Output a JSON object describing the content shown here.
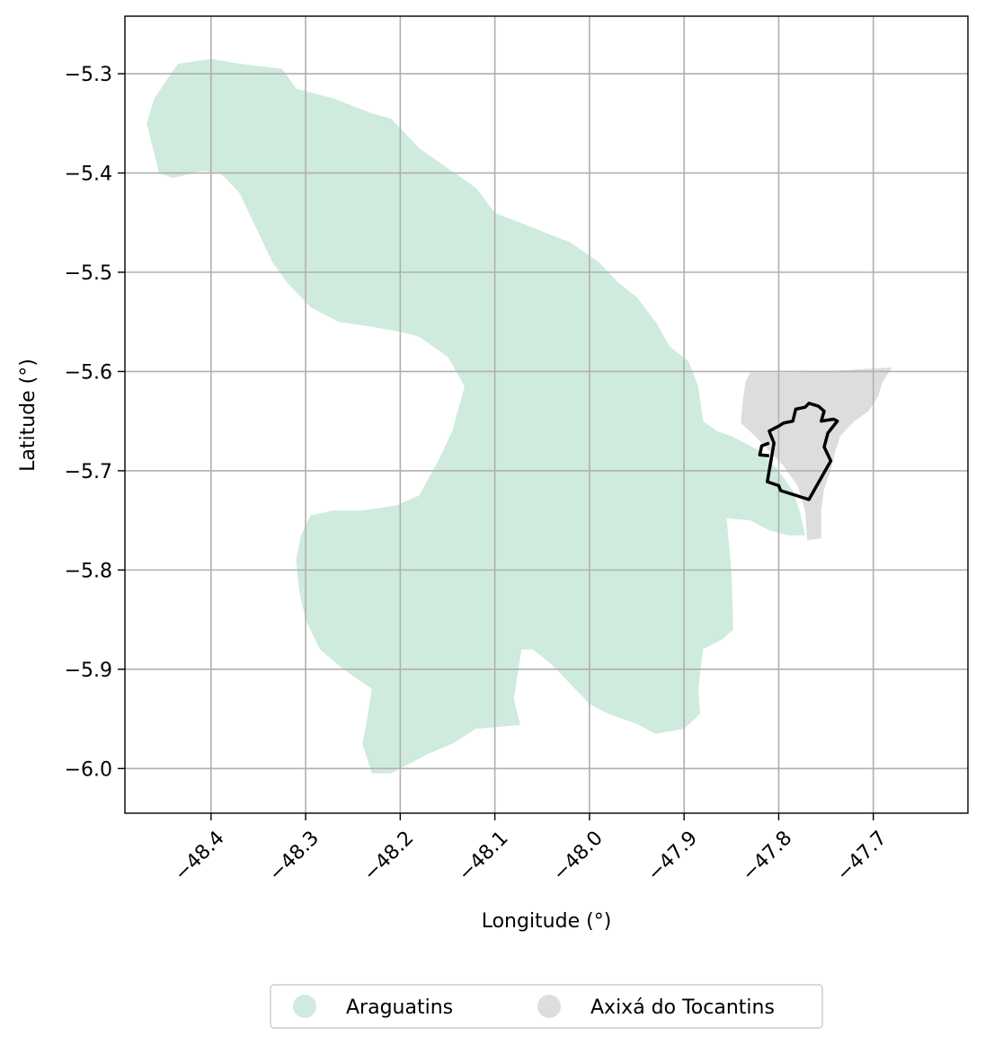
{
  "chart_data": {
    "type": "map",
    "xlabel": "Longitude (°)",
    "ylabel": "Latitude (°)",
    "xlim": [
      -48.491,
      -47.6
    ],
    "ylim": [
      -6.045,
      -5.242
    ],
    "grid": true,
    "x_ticks": [
      {
        "value": -48.4,
        "label": "−48.4"
      },
      {
        "value": -48.3,
        "label": "−48.3"
      },
      {
        "value": -48.2,
        "label": "−48.2"
      },
      {
        "value": -48.1,
        "label": "−48.1"
      },
      {
        "value": -48.0,
        "label": "−48.0"
      },
      {
        "value": -47.9,
        "label": "−47.9"
      },
      {
        "value": -47.8,
        "label": "−47.8"
      },
      {
        "value": -47.7,
        "label": "−47.7"
      }
    ],
    "y_ticks": [
      {
        "value": -5.3,
        "label": "−5.3"
      },
      {
        "value": -5.4,
        "label": "−5.4"
      },
      {
        "value": -5.5,
        "label": "−5.5"
      },
      {
        "value": -5.6,
        "label": "−5.6"
      },
      {
        "value": -5.7,
        "label": "−5.7"
      },
      {
        "value": -5.8,
        "label": "−5.8"
      },
      {
        "value": -5.9,
        "label": "−5.9"
      },
      {
        "value": -6.0,
        "label": "−6.0"
      }
    ],
    "legend_position": "bottom-center",
    "regions": [
      {
        "name": "Araguatins",
        "color": "#cfebde",
        "coords": [
          [
            -48.448,
            -5.308
          ],
          [
            -48.435,
            -5.29
          ],
          [
            -48.4,
            -5.285
          ],
          [
            -48.37,
            -5.29
          ],
          [
            -48.325,
            -5.295
          ],
          [
            -48.31,
            -5.315
          ],
          [
            -48.27,
            -5.325
          ],
          [
            -48.23,
            -5.34
          ],
          [
            -48.21,
            -5.345
          ],
          [
            -48.195,
            -5.36
          ],
          [
            -48.18,
            -5.375
          ],
          [
            -48.15,
            -5.395
          ],
          [
            -48.12,
            -5.415
          ],
          [
            -48.1,
            -5.44
          ],
          [
            -48.06,
            -5.455
          ],
          [
            -48.02,
            -5.47
          ],
          [
            -47.99,
            -5.49
          ],
          [
            -47.97,
            -5.51
          ],
          [
            -47.95,
            -5.525
          ],
          [
            -47.93,
            -5.55
          ],
          [
            -47.915,
            -5.575
          ],
          [
            -47.895,
            -5.59
          ],
          [
            -47.885,
            -5.615
          ],
          [
            -47.88,
            -5.65
          ],
          [
            -47.865,
            -5.66
          ],
          [
            -47.85,
            -5.665
          ],
          [
            -47.84,
            -5.67
          ],
          [
            -47.82,
            -5.68
          ],
          [
            -47.8,
            -5.7
          ],
          [
            -47.785,
            -5.72
          ],
          [
            -47.778,
            -5.74
          ],
          [
            -47.772,
            -5.765
          ],
          [
            -47.79,
            -5.765
          ],
          [
            -47.81,
            -5.76
          ],
          [
            -47.83,
            -5.75
          ],
          [
            -47.855,
            -5.748
          ],
          [
            -47.85,
            -5.8
          ],
          [
            -47.848,
            -5.86
          ],
          [
            -47.86,
            -5.87
          ],
          [
            -47.88,
            -5.88
          ],
          [
            -47.885,
            -5.92
          ],
          [
            -47.883,
            -5.945
          ],
          [
            -47.9,
            -5.96
          ],
          [
            -47.93,
            -5.965
          ],
          [
            -47.95,
            -5.955
          ],
          [
            -47.98,
            -5.945
          ],
          [
            -48.0,
            -5.935
          ],
          [
            -48.02,
            -5.915
          ],
          [
            -48.04,
            -5.895
          ],
          [
            -48.06,
            -5.88
          ],
          [
            -48.072,
            -5.88
          ],
          [
            -48.075,
            -5.9
          ],
          [
            -48.08,
            -5.93
          ],
          [
            -48.073,
            -5.956
          ],
          [
            -48.095,
            -5.958
          ],
          [
            -48.12,
            -5.96
          ],
          [
            -48.145,
            -5.975
          ],
          [
            -48.17,
            -5.985
          ],
          [
            -48.19,
            -5.995
          ],
          [
            -48.21,
            -6.005
          ],
          [
            -48.23,
            -6.005
          ],
          [
            -48.24,
            -5.975
          ],
          [
            -48.235,
            -5.95
          ],
          [
            -48.23,
            -5.92
          ],
          [
            -48.26,
            -5.9
          ],
          [
            -48.285,
            -5.88
          ],
          [
            -48.3,
            -5.85
          ],
          [
            -48.307,
            -5.82
          ],
          [
            -48.31,
            -5.79
          ],
          [
            -48.305,
            -5.765
          ],
          [
            -48.295,
            -5.745
          ],
          [
            -48.27,
            -5.74
          ],
          [
            -48.24,
            -5.74
          ],
          [
            -48.205,
            -5.735
          ],
          [
            -48.18,
            -5.725
          ],
          [
            -48.16,
            -5.69
          ],
          [
            -48.145,
            -5.66
          ],
          [
            -48.132,
            -5.615
          ],
          [
            -48.15,
            -5.585
          ],
          [
            -48.18,
            -5.565
          ],
          [
            -48.2,
            -5.56
          ],
          [
            -48.23,
            -5.555
          ],
          [
            -48.265,
            -5.55
          ],
          [
            -48.295,
            -5.535
          ],
          [
            -48.32,
            -5.51
          ],
          [
            -48.335,
            -5.49
          ],
          [
            -48.345,
            -5.47
          ],
          [
            -48.37,
            -5.42
          ],
          [
            -48.39,
            -5.4
          ],
          [
            -48.41,
            -5.398
          ],
          [
            -48.44,
            -5.405
          ],
          [
            -48.455,
            -5.4
          ],
          [
            -48.46,
            -5.38
          ],
          [
            -48.468,
            -5.35
          ],
          [
            -48.46,
            -5.325
          ]
        ]
      },
      {
        "name": "Axixá do Tocantins",
        "color": "#dddddd",
        "coords": [
          [
            -47.83,
            -5.601
          ],
          [
            -47.79,
            -5.601
          ],
          [
            -47.75,
            -5.6
          ],
          [
            -47.72,
            -5.598
          ],
          [
            -47.68,
            -5.596
          ],
          [
            -47.69,
            -5.61
          ],
          [
            -47.695,
            -5.625
          ],
          [
            -47.705,
            -5.64
          ],
          [
            -47.72,
            -5.65
          ],
          [
            -47.735,
            -5.665
          ],
          [
            -47.74,
            -5.68
          ],
          [
            -47.745,
            -5.7
          ],
          [
            -47.752,
            -5.718
          ],
          [
            -47.755,
            -5.74
          ],
          [
            -47.755,
            -5.768
          ],
          [
            -47.77,
            -5.77
          ],
          [
            -47.772,
            -5.74
          ],
          [
            -47.78,
            -5.715
          ],
          [
            -47.795,
            -5.695
          ],
          [
            -47.81,
            -5.68
          ],
          [
            -47.825,
            -5.665
          ],
          [
            -47.84,
            -5.652
          ],
          [
            -47.838,
            -5.63
          ],
          [
            -47.835,
            -5.61
          ]
        ]
      }
    ],
    "outline": {
      "color": "#000000",
      "coords": [
        [
          -47.81,
          -5.66
        ],
        [
          -47.8,
          -5.655
        ],
        [
          -47.795,
          -5.652
        ],
        [
          -47.785,
          -5.65
        ],
        [
          -47.782,
          -5.638
        ],
        [
          -47.772,
          -5.636
        ],
        [
          -47.768,
          -5.632
        ],
        [
          -47.758,
          -5.635
        ],
        [
          -47.752,
          -5.64
        ],
        [
          -47.755,
          -5.65
        ],
        [
          -47.742,
          -5.648
        ],
        [
          -47.738,
          -5.65
        ],
        [
          -47.748,
          -5.662
        ],
        [
          -47.752,
          -5.676
        ],
        [
          -47.745,
          -5.69
        ],
        [
          -47.768,
          -5.729
        ],
        [
          -47.798,
          -5.72
        ],
        [
          -47.8,
          -5.715
        ],
        [
          -47.812,
          -5.711
        ],
        [
          -47.805,
          -5.672
        ],
        [
          -47.808,
          -5.665
        ]
      ],
      "tail": [
        [
          -47.81,
          -5.685
        ],
        [
          -47.82,
          -5.684
        ],
        [
          -47.818,
          -5.675
        ],
        [
          -47.81,
          -5.672
        ]
      ]
    }
  },
  "legend": {
    "items": [
      {
        "label": "Araguatins",
        "color": "#cfebde"
      },
      {
        "label": "Axixá do Tocantins",
        "color": "#dddddd"
      }
    ]
  }
}
